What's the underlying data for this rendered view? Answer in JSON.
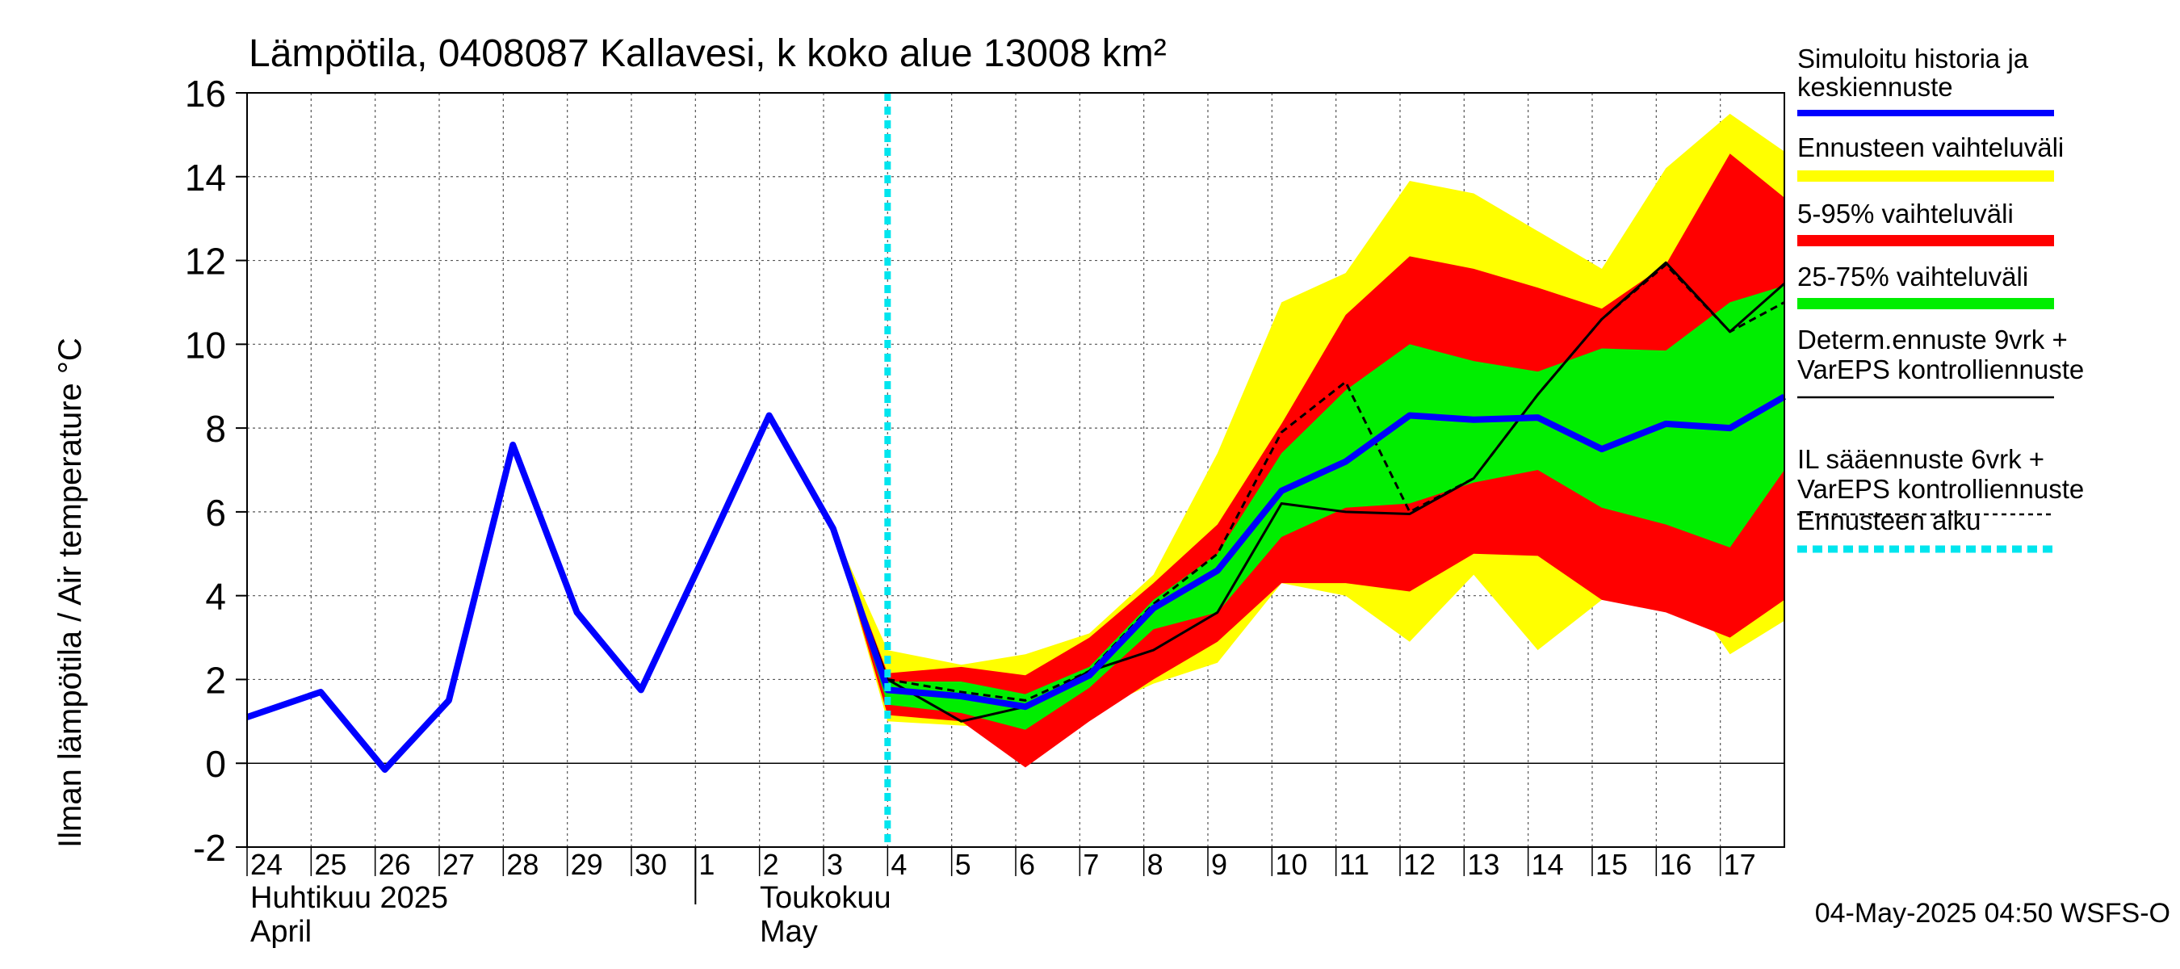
{
  "chart_data": {
    "type": "area",
    "title": "Lämpötila, 0408087 Kallavesi, k koko alue 13008 km²",
    "ylabel": "Ilman lämpötila / Air temperature   °C",
    "ylim": [
      -2,
      16
    ],
    "yticks": [
      "-2",
      "0",
      "2",
      "4",
      "6",
      "8",
      "10",
      "12",
      "14",
      "16"
    ],
    "xlim": [
      -0.15,
      23.85
    ],
    "day_labels": [
      "24",
      "25",
      "26",
      "27",
      "28",
      "29",
      "30",
      "1",
      "2",
      "3",
      "4",
      "5",
      "6",
      "7",
      "8",
      "9",
      "10",
      "11",
      "12",
      "13",
      "14",
      "15",
      "16",
      "17"
    ],
    "month_labels": {
      "april_fi": "Huhtikuu  2025",
      "april_en": "April",
      "may_fi": "Toukokuu",
      "may_en": "May"
    },
    "month_divider_x": 6.85,
    "forecast_start_x": 9.85,
    "timestamp": "04-May-2025 04:50 WSFS-O",
    "colors": {
      "history": "#0000ff",
      "range_full": "#ffff00",
      "range_5_95": "#ff0000",
      "range_25_75": "#00ee00",
      "deterministic": "#000000",
      "il_forecast": "#000000",
      "forecast_start": "#00e5ee"
    },
    "legend": [
      {
        "key": "history",
        "label_lines": [
          "Simuloitu historia ja",
          "keskiennuste"
        ],
        "style": "thick-line"
      },
      {
        "key": "range_full",
        "label_lines": [
          "Ennusteen vaihteluväli"
        ],
        "style": "band"
      },
      {
        "key": "range_5_95",
        "label_lines": [
          "5-95% vaihteluväli"
        ],
        "style": "band"
      },
      {
        "key": "range_25_75",
        "label_lines": [
          "25-75% vaihteluväli"
        ],
        "style": "band"
      },
      {
        "key": "deterministic",
        "label_lines": [
          "Determ.ennuste 9vrk +",
          "VarEPS kontrolliennuste"
        ],
        "style": "thin-line"
      },
      {
        "key": "il_forecast",
        "label_lines": [
          "IL sääennuste 6vrk  +",
          "  VarEPS kontrolliennuste"
        ],
        "style": "dashed-line"
      },
      {
        "key": "forecast_start",
        "label_lines": [
          "Ennusteen alku"
        ],
        "style": "dotted-thick"
      }
    ],
    "series": [
      {
        "key": "history",
        "x": [
          -0.15,
          1,
          2,
          3,
          4,
          5,
          6,
          7,
          8,
          9,
          9.85,
          11,
          12,
          13,
          14,
          15,
          16,
          17,
          18,
          19,
          20,
          21,
          22,
          23,
          23.85
        ],
        "values": [
          1.1,
          1.7,
          -0.15,
          1.5,
          7.6,
          3.6,
          1.75,
          5.0,
          8.3,
          5.6,
          1.75,
          1.6,
          1.35,
          2.1,
          3.7,
          4.6,
          6.5,
          7.2,
          8.3,
          8.2,
          8.25,
          7.5,
          8.1,
          8.0,
          8.75
        ]
      },
      {
        "key": "deterministic",
        "x": [
          8,
          9,
          9.85,
          11,
          12,
          13,
          14,
          15,
          16,
          17,
          18,
          19,
          20,
          21,
          22,
          23,
          23.85
        ],
        "values": [
          8.3,
          5.55,
          2.0,
          1.0,
          1.35,
          2.2,
          2.7,
          3.6,
          6.2,
          6.0,
          5.95,
          6.8,
          8.8,
          10.6,
          11.95,
          10.3,
          11.45
        ]
      },
      {
        "key": "il_forecast",
        "x": [
          9.85,
          11,
          12,
          13,
          14,
          15,
          16,
          17,
          18,
          19,
          20,
          21,
          22,
          23,
          23.85
        ],
        "values": [
          2.0,
          1.7,
          1.5,
          2.2,
          3.8,
          5.0,
          7.9,
          9.1,
          6.0,
          6.8,
          8.8,
          10.6,
          11.9,
          10.3,
          11.0
        ]
      }
    ],
    "bands": [
      {
        "key": "range_full",
        "x": [
          9,
          9.85,
          11,
          12,
          13,
          14,
          15,
          16,
          17,
          18,
          19,
          20,
          21,
          22,
          23,
          23.85
        ],
        "upper": [
          5.6,
          2.7,
          2.35,
          2.6,
          3.1,
          4.5,
          7.4,
          11.0,
          11.7,
          13.9,
          13.6,
          12.7,
          11.8,
          14.2,
          15.5,
          14.6
        ],
        "lower": [
          5.6,
          1.0,
          0.9,
          0.8,
          1.2,
          1.9,
          2.4,
          4.3,
          4.0,
          2.9,
          4.5,
          2.7,
          3.9,
          4.8,
          2.6,
          3.4
        ]
      },
      {
        "key": "range_5_95",
        "x": [
          9,
          9.85,
          11,
          12,
          13,
          14,
          15,
          16,
          17,
          18,
          19,
          20,
          21,
          22,
          23,
          23.85
        ],
        "upper": [
          5.6,
          2.15,
          2.3,
          2.1,
          3.0,
          4.3,
          5.7,
          8.1,
          10.7,
          12.1,
          11.8,
          11.35,
          10.85,
          11.9,
          14.55,
          13.5
        ],
        "lower": [
          5.6,
          1.15,
          1.0,
          -0.1,
          1.0,
          2.0,
          2.9,
          4.3,
          4.3,
          4.1,
          5.0,
          4.95,
          3.9,
          3.6,
          3.0,
          3.9
        ]
      },
      {
        "key": "range_25_75",
        "x": [
          9,
          9.85,
          11,
          12,
          13,
          14,
          15,
          16,
          17,
          18,
          19,
          20,
          21,
          22,
          23,
          23.85
        ],
        "upper": [
          5.6,
          1.95,
          1.95,
          1.65,
          2.3,
          3.9,
          5.0,
          7.4,
          8.9,
          10.0,
          9.6,
          9.35,
          9.9,
          9.85,
          11.0,
          11.4
        ],
        "lower": [
          5.6,
          1.4,
          1.2,
          0.8,
          1.8,
          3.2,
          3.6,
          5.4,
          6.1,
          6.2,
          6.7,
          7.0,
          6.1,
          5.7,
          5.15,
          7.0
        ]
      }
    ]
  }
}
